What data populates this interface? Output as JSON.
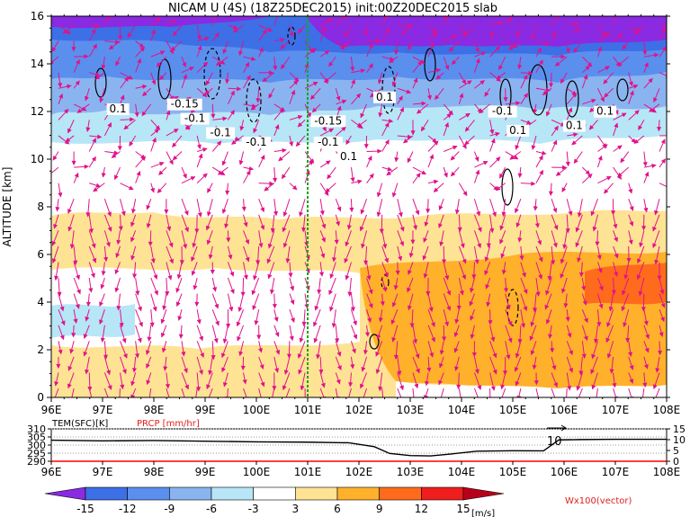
{
  "header": {
    "title": "NICAM U (4S) (18Z25DEC2015) init:00Z20DEC2015 slab"
  },
  "chart_data": [
    {
      "type": "heatmap",
      "ylabel": "ALTITUDE [km]",
      "x_ticks": [
        "96E",
        "97E",
        "98E",
        "99E",
        "100E",
        "101E",
        "102E",
        "103E",
        "104E",
        "105E",
        "106E",
        "107E",
        "108E"
      ],
      "x_range": [
        96,
        108
      ],
      "y_ticks": [
        "0",
        "2",
        "4",
        "6",
        "8",
        "10",
        "12",
        "14",
        "16"
      ],
      "y_range": [
        0,
        16
      ],
      "marker_line_lon": 101,
      "contour_labels": [
        {
          "text": "0.1",
          "lon": 97.3,
          "alt": 12.0
        },
        {
          "text": "-0.15",
          "lon": 98.6,
          "alt": 12.2
        },
        {
          "text": "-0.1",
          "lon": 98.8,
          "alt": 11.6
        },
        {
          "text": "-0.1",
          "lon": 99.3,
          "alt": 11.0
        },
        {
          "text": "-0.1",
          "lon": 100.0,
          "alt": 10.6
        },
        {
          "text": "-0.15",
          "lon": 101.4,
          "alt": 11.5
        },
        {
          "text": "-0.1",
          "lon": 101.4,
          "alt": 10.6
        },
        {
          "text": "0.1",
          "lon": 101.8,
          "alt": 10.0
        },
        {
          "text": "0.1",
          "lon": 102.5,
          "alt": 12.5
        },
        {
          "text": "-0.1",
          "lon": 104.8,
          "alt": 11.9
        },
        {
          "text": "0.1",
          "lon": 105.1,
          "alt": 11.1
        },
        {
          "text": "0.1",
          "lon": 106.2,
          "alt": 11.3
        },
        {
          "text": "0.1",
          "lon": 106.8,
          "alt": 11.9
        }
      ]
    },
    {
      "type": "line",
      "legend_left": "TEM(SFC)[K]",
      "legend_right": "PRCP [mm/hr]",
      "y_ticks_left": [
        "310",
        "305",
        "300",
        "295",
        "290"
      ],
      "y_range_left": [
        290,
        310
      ],
      "y_ticks_right": [
        "15",
        "10",
        "5",
        "0"
      ],
      "y_range_right": [
        0,
        15
      ],
      "x_ticks": [
        "96E",
        "97E",
        "98E",
        "99E",
        "100E",
        "101E",
        "102E",
        "103E",
        "104E",
        "105E",
        "106E",
        "107E",
        "108E"
      ],
      "annotation": "10",
      "series": [
        {
          "color": "#000000",
          "lon": [
            96,
            97,
            98,
            99,
            100,
            101,
            101.8,
            102.3,
            102.6,
            103,
            103.4,
            103.8,
            104.3,
            105,
            105.6,
            105.9,
            106.3,
            107,
            108
          ],
          "values": [
            303,
            302.6,
            302.8,
            302.4,
            302,
            301.8,
            301.4,
            299,
            294.8,
            293.5,
            293.3,
            294.5,
            296.2,
            296.5,
            296.4,
            303.2,
            303.4,
            303.6,
            303.6
          ]
        },
        {
          "color": "#ff0000",
          "lon": [
            96,
            108
          ],
          "values": [
            0,
            0
          ]
        }
      ]
    }
  ],
  "colorbar": {
    "labels": [
      "-15",
      "-12",
      "-9",
      "-6",
      "-3",
      "3",
      "6",
      "9",
      "12",
      "15"
    ],
    "unit": "[m/s]",
    "vector_label": "Wx100(vector)",
    "colors": [
      "#8a2ae2",
      "#3d6fe6",
      "#5a8fee",
      "#8ab4f0",
      "#b7e6f7",
      "#ffffff",
      "#ffe394",
      "#ffb12b",
      "#ff6b1c",
      "#f01d1d",
      "#b9001b"
    ]
  }
}
